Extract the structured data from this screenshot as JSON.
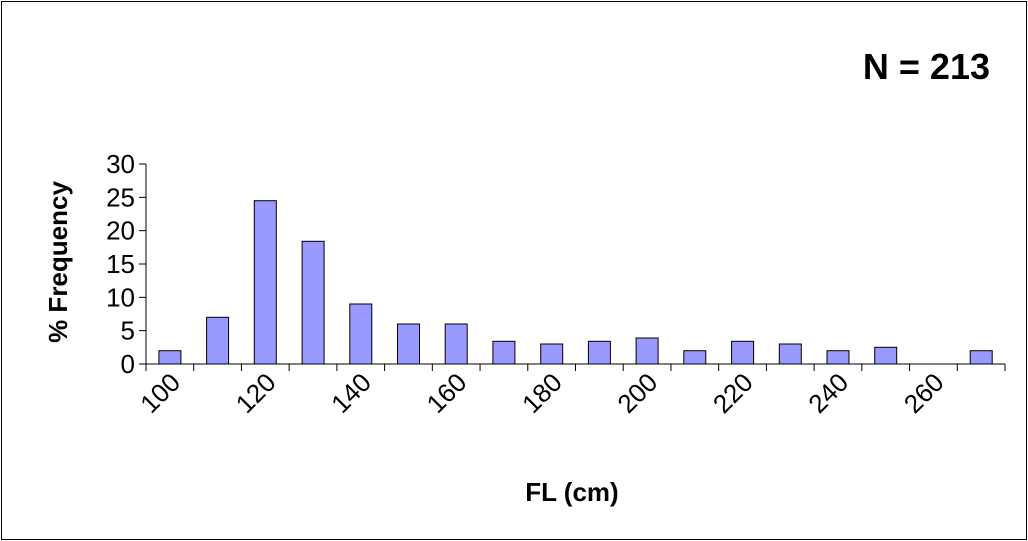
{
  "annotation": "N = 213",
  "chart_data": {
    "type": "bar",
    "title": "",
    "xlabel": "FL (cm)",
    "ylabel": "% Frequency",
    "ylim": [
      0,
      30
    ],
    "yticks": [
      "0",
      "5",
      "10",
      "15",
      "20",
      "25",
      "30"
    ],
    "x_tick_labels": [
      "100",
      "120",
      "140",
      "160",
      "180",
      "200",
      "220",
      "240",
      "260"
    ],
    "bins": 18,
    "values": [
      2,
      7,
      24.5,
      18.4,
      9,
      6,
      6,
      3.4,
      3,
      3.4,
      3.9,
      2,
      3.4,
      3,
      2,
      2.5,
      0,
      2
    ],
    "bar_color": "#9999ff",
    "bar_edge": "#000000",
    "grid": false,
    "legend": "none"
  }
}
